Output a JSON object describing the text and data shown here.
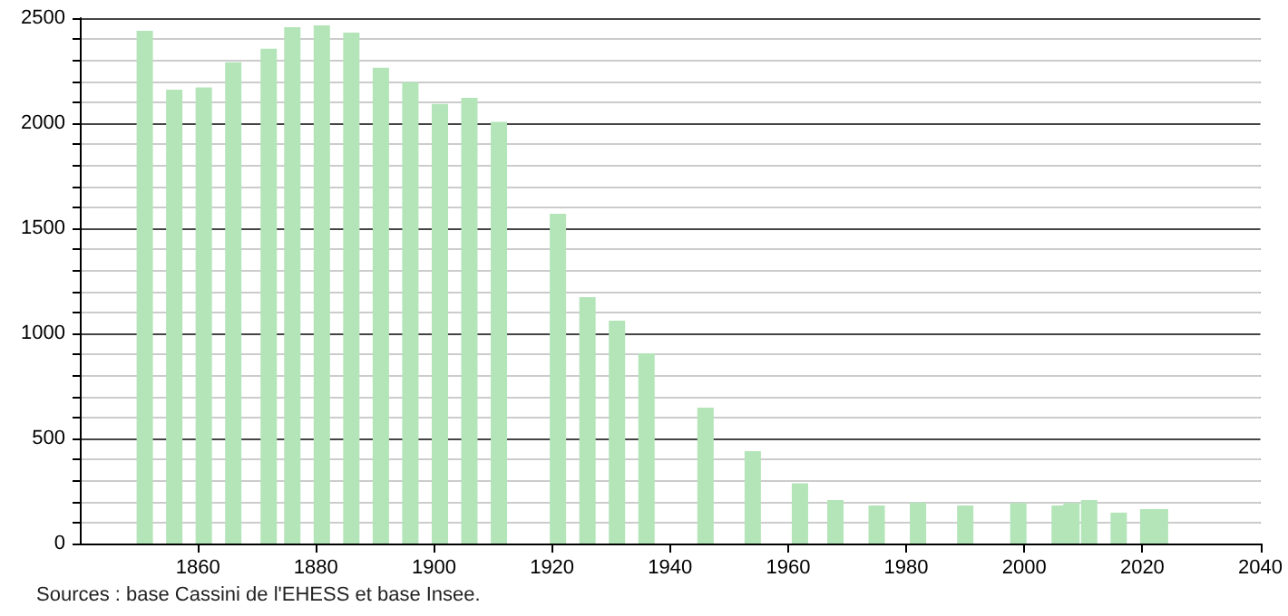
{
  "chart_data": {
    "type": "bar",
    "x": [
      1851,
      1856,
      1861,
      1866,
      1872,
      1876,
      1881,
      1886,
      1891,
      1896,
      1901,
      1906,
      1911,
      1921,
      1926,
      1931,
      1936,
      1946,
      1954,
      1962,
      1968,
      1975,
      1982,
      1990,
      1999,
      2006,
      2008,
      2011,
      2016,
      2021,
      2023
    ],
    "values": [
      2440,
      2160,
      2170,
      2290,
      2355,
      2457,
      2466,
      2431,
      2264,
      2195,
      2092,
      2121,
      2006,
      1569,
      1172,
      1060,
      905,
      647,
      440,
      287,
      207,
      181,
      195,
      181,
      193,
      181,
      193,
      207,
      147,
      164,
      164
    ],
    "color": "#b3e5b9",
    "xlim": [
      1840,
      2040
    ],
    "xticks": [
      1860,
      1880,
      1900,
      1920,
      1940,
      1960,
      1980,
      2000,
      2020,
      2040
    ],
    "ylim": [
      0,
      2500
    ],
    "yticks": [
      0,
      500,
      1000,
      1500,
      2000,
      2500
    ],
    "grid": "y",
    "annotations": [
      "Sources : base Cassini de l'EHESS et base Insee."
    ]
  }
}
